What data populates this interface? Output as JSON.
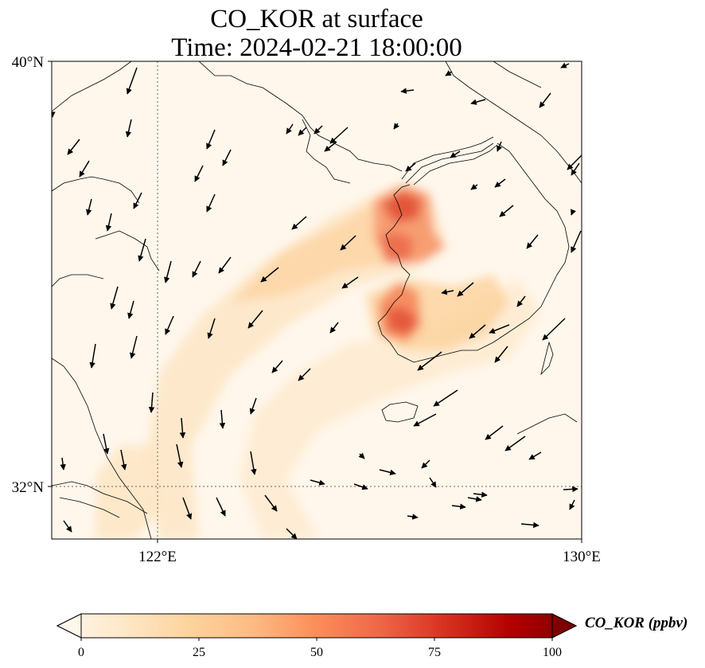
{
  "title": {
    "line1": "CO_KOR at surface",
    "line2": "Time: 2024-02-21 18:00:00"
  },
  "axes": {
    "lat_labels": [
      "40°N",
      "32°N"
    ],
    "lon_labels": [
      "122°E",
      "130°E"
    ],
    "extent": {
      "lon_min": 120,
      "lon_max": 130,
      "lat_min": 31,
      "lat_max": 40
    },
    "gridlines": {
      "lons": [
        122
      ],
      "lats": [
        32
      ],
      "style": "dotted"
    }
  },
  "colorbar": {
    "label": "CO_KOR (ppbv)",
    "ticks": [
      "0",
      "25",
      "50",
      "75",
      "100"
    ],
    "range": [
      0,
      100
    ],
    "colormap": "OrRd",
    "extend": "both",
    "colors": [
      "#fff7ec",
      "#fee8c8",
      "#fdd49e",
      "#fdbb84",
      "#fc8d59",
      "#ef6548",
      "#d7301f",
      "#b30000",
      "#7f0000"
    ]
  },
  "layers": [
    "CO_KOR concentration field",
    "wind vectors",
    "coastlines"
  ]
}
